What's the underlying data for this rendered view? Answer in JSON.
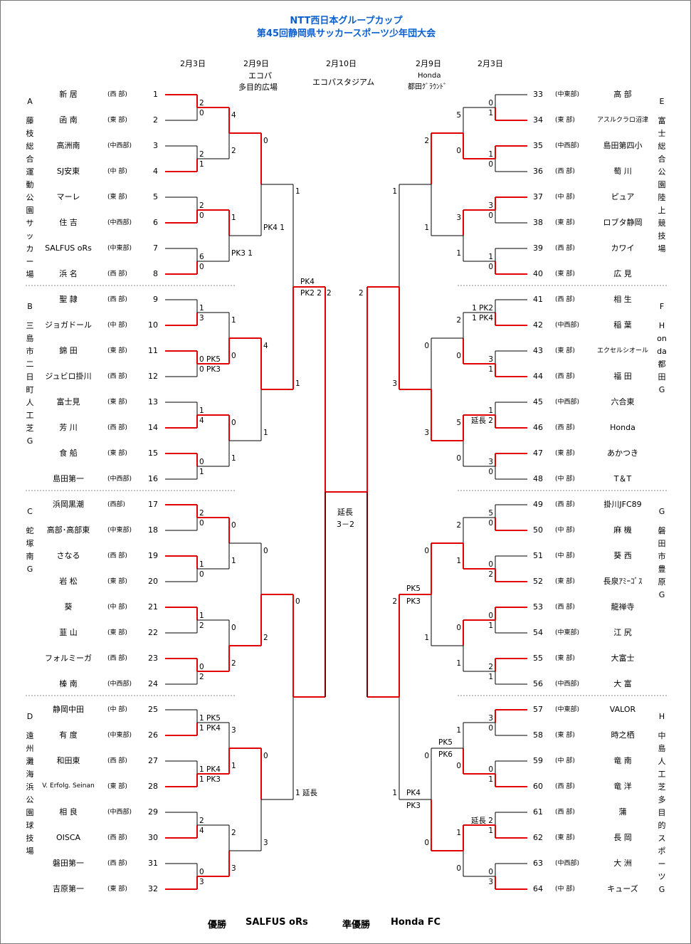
{
  "title": {
    "line1": "NTT西日本グループカップ",
    "line2": "第45回静岡県サッカースポーツ少年団大会"
  },
  "headers": {
    "l_r1": "2月3日",
    "l_r2_date": "2月9日",
    "l_r2_v1": "エコパ",
    "l_r2_v2": "多目的広場",
    "final_date": "2月10日",
    "final_venue": "エコパスタジアム",
    "r_r2_date": "2月9日",
    "r_r2_v1": "Honda",
    "r_r2_v2": "都田ｸﾞﾗｳﾝﾄﾞ",
    "r_r1": "2月3日"
  },
  "blocks": [
    {
      "letter": "A",
      "venue": "藤枝総合運動公園サッカー場"
    },
    {
      "letter": "B",
      "venue": "三島市二日町人工芝G"
    },
    {
      "letter": "C",
      "venue": "蛇塚南G"
    },
    {
      "letter": "D",
      "venue": "遠州灘海浜公園球技場"
    },
    {
      "letter": "E",
      "venue": "富士総合公園陸上競技場"
    },
    {
      "letter": "F",
      "venue": "Honda都田G"
    },
    {
      "letter": "G",
      "venue": "磐田市豊原G"
    },
    {
      "letter": "H",
      "venue": "中島人工芝多目的スポーツG"
    }
  ],
  "teams": [
    {
      "no": "1",
      "name": "新 居",
      "region": "(西 部)"
    },
    {
      "no": "2",
      "name": "函 南",
      "region": "(東 部)"
    },
    {
      "no": "3",
      "name": "高洲南",
      "region": "(中西部)"
    },
    {
      "no": "4",
      "name": "SJ安東",
      "region": "(中 部)"
    },
    {
      "no": "5",
      "name": "マーレ",
      "region": "(東 部)"
    },
    {
      "no": "6",
      "name": "住 吉",
      "region": "(中西部)"
    },
    {
      "no": "7",
      "name": "SALFUS oRs",
      "region": "(中東部)"
    },
    {
      "no": "8",
      "name": "浜 名",
      "region": "(西 部)"
    },
    {
      "no": "9",
      "name": "聖 隷",
      "region": "(西 部)"
    },
    {
      "no": "10",
      "name": "ジョガドール",
      "region": "(中 部)"
    },
    {
      "no": "11",
      "name": "錦 田",
      "region": "(東 部)"
    },
    {
      "no": "12",
      "name": "ジュビロ掛川",
      "region": "(西 部)"
    },
    {
      "no": "13",
      "name": "富士見",
      "region": "(東 部)"
    },
    {
      "no": "14",
      "name": "芳 川",
      "region": "(西 部)"
    },
    {
      "no": "15",
      "name": "食 船",
      "region": "(東 部)"
    },
    {
      "no": "16",
      "name": "島田第一",
      "region": "(中西部)"
    },
    {
      "no": "17",
      "name": "浜岡黒潮",
      "region": "(西部)"
    },
    {
      "no": "18",
      "name": "高部･高部東",
      "region": "(中東部)"
    },
    {
      "no": "19",
      "name": "さなる",
      "region": "(西 部)"
    },
    {
      "no": "20",
      "name": "岩 松",
      "region": "(東 部)"
    },
    {
      "no": "21",
      "name": "葵",
      "region": "(中 部)"
    },
    {
      "no": "22",
      "name": "韮 山",
      "region": "(東 部)"
    },
    {
      "no": "23",
      "name": "フォルミーガ",
      "region": "(西 部)"
    },
    {
      "no": "24",
      "name": "榛 南",
      "region": "(中西部)"
    },
    {
      "no": "25",
      "name": "静岡中田",
      "region": "(中 部)"
    },
    {
      "no": "26",
      "name": "有 度",
      "region": "(中東部)"
    },
    {
      "no": "27",
      "name": "和田東",
      "region": "(西 部)"
    },
    {
      "no": "28",
      "name": "V. Erfolg. Seinan",
      "region": "(東 部)"
    },
    {
      "no": "29",
      "name": "相 良",
      "region": "(中西部)"
    },
    {
      "no": "30",
      "name": "OISCA",
      "region": "(西 部)"
    },
    {
      "no": "31",
      "name": "磐田第一",
      "region": "(西 部)"
    },
    {
      "no": "32",
      "name": "吉原第一",
      "region": "(東 部)"
    },
    {
      "no": "33",
      "name": "高 部",
      "region": "(中東部)"
    },
    {
      "no": "34",
      "name": "アスルクラロ沼津",
      "region": "(東 部)"
    },
    {
      "no": "35",
      "name": "島田第四小",
      "region": "(中西部)"
    },
    {
      "no": "36",
      "name": "萄 川",
      "region": "(西 部)"
    },
    {
      "no": "37",
      "name": "ピュア",
      "region": "(中 部)"
    },
    {
      "no": "38",
      "name": "ロブタ静岡",
      "region": "(東 部)"
    },
    {
      "no": "39",
      "name": "カワイ",
      "region": "(西 部)"
    },
    {
      "no": "40",
      "name": "広 見",
      "region": "(東 部)"
    },
    {
      "no": "41",
      "name": "相 生",
      "region": "(西 部)"
    },
    {
      "no": "42",
      "name": "稲 葉",
      "region": "(中西部)"
    },
    {
      "no": "43",
      "name": "エクセルシオール",
      "region": "(東 部)"
    },
    {
      "no": "44",
      "name": "福 田",
      "region": "(西 部)"
    },
    {
      "no": "45",
      "name": "六合東",
      "region": "(中西部)"
    },
    {
      "no": "46",
      "name": "Honda",
      "region": "(西 部)"
    },
    {
      "no": "47",
      "name": "あかつき",
      "region": "(東 部)"
    },
    {
      "no": "48",
      "name": "T＆T",
      "region": "(中 部)"
    },
    {
      "no": "49",
      "name": "掛川JFC89",
      "region": "(西 部)"
    },
    {
      "no": "50",
      "name": "麻 機",
      "region": "(中 部)"
    },
    {
      "no": "51",
      "name": "葵 西",
      "region": "(中 部)"
    },
    {
      "no": "52",
      "name": "長泉ｱﾐｰｺﾞｽ",
      "region": "(東 部)"
    },
    {
      "no": "53",
      "name": "龍禅寺",
      "region": "(西 部)"
    },
    {
      "no": "54",
      "name": "江 尻",
      "region": "(中東部)"
    },
    {
      "no": "55",
      "name": "大富士",
      "region": "(東 部)"
    },
    {
      "no": "56",
      "name": "大 富",
      "region": "(中西部)"
    },
    {
      "no": "57",
      "name": "VALOR",
      "region": "(中東部)"
    },
    {
      "no": "58",
      "name": "時之栖",
      "region": "(東 部)"
    },
    {
      "no": "59",
      "name": "竜 南",
      "region": "(中 部)"
    },
    {
      "no": "60",
      "name": "竜 洋",
      "region": "(西 部)"
    },
    {
      "no": "61",
      "name": "蒲",
      "region": "(西 部)"
    },
    {
      "no": "62",
      "name": "長 岡",
      "region": "(東 部)"
    },
    {
      "no": "63",
      "name": "大 洲",
      "region": "(中西部)"
    },
    {
      "no": "64",
      "name": "キューズ",
      "region": "(中 部)"
    }
  ],
  "scores": {
    "m1": [
      "2",
      "0"
    ],
    "m2": [
      "2",
      "1"
    ],
    "m3": [
      "2",
      "0"
    ],
    "m4": [
      "6",
      "0"
    ],
    "m5": [
      "1",
      "3"
    ],
    "m6": [
      "0 PK5",
      "0 PK3"
    ],
    "m7": [
      "1",
      "4"
    ],
    "m8": [
      "0",
      "1"
    ],
    "m9": [
      "2",
      "0"
    ],
    "m10": [
      "1",
      "0"
    ],
    "m11": [
      "1",
      "2"
    ],
    "m12": [
      "0",
      "2"
    ],
    "m13": [
      "1 PK5",
      "1 PK4"
    ],
    "m14": [
      "1 PK4",
      "1 PK3"
    ],
    "m15": [
      "2",
      "4"
    ],
    "m16": [
      "0",
      "3"
    ],
    "m17": [
      "0",
      "1"
    ],
    "m18": [
      "1",
      "0"
    ],
    "m19": [
      "3",
      "0"
    ],
    "m20": [
      "1",
      "0"
    ],
    "m21": [
      "1 PK2",
      "1 PK4"
    ],
    "m22": [
      "3",
      "1"
    ],
    "m23": [
      "1",
      "延長 2"
    ],
    "m24": [
      "3",
      "0"
    ],
    "m25": [
      "5",
      "0"
    ],
    "m26": [
      "0",
      "2"
    ],
    "m27": [
      "0",
      "1"
    ],
    "m28": [
      "2",
      "1"
    ],
    "m29": [
      "3",
      "0"
    ],
    "m30": [
      "0",
      "1"
    ],
    "m31": [
      "延長 2",
      "1"
    ],
    "m32": [
      "0",
      "3"
    ],
    "q1": [
      "4",
      "2"
    ],
    "q2": [
      "1",
      "PK3 1"
    ],
    "q3": [
      "1",
      "0"
    ],
    "q4": [
      "0",
      "1"
    ],
    "q5": [
      "0",
      "1"
    ],
    "q6": [
      "0",
      "2"
    ],
    "q7": [
      "3",
      "1"
    ],
    "q8": [
      "2",
      "3"
    ],
    "q9": [
      "5",
      "0"
    ],
    "q10": [
      "3",
      "1"
    ],
    "q11": [
      "2",
      "0"
    ],
    "q12": [
      "5",
      "0"
    ],
    "q13": [
      "2",
      "1"
    ],
    "q14": [
      "0",
      "1"
    ],
    "q15": [
      "1",
      "0"
    ],
    "q16": [
      "1",
      "0"
    ],
    "s1": [
      "0",
      "PK4 1"
    ],
    "s2": [
      "4",
      "1"
    ],
    "s3": [
      "0",
      "2"
    ],
    "s4": [
      "0",
      "3"
    ],
    "s5": [
      "2",
      "1"
    ],
    "s6": [
      "0",
      "3"
    ],
    "s7": [
      "0",
      "1"
    ],
    "s8": [
      "0",
      "0"
    ],
    "t1": [
      "1",
      "PK4"
    ],
    "t2": [
      "PK2 2",
      "1"
    ],
    "t3": [
      "0",
      "1 延長"
    ],
    "t4": [
      "1",
      "3"
    ],
    "t5": [
      "2",
      "1"
    ],
    "t6": [
      "PK5",
      "PK3"
    ],
    "t7": [
      "PK5",
      "PK6"
    ],
    "t8": [
      "PK4",
      "PK3"
    ],
    "f": [
      "2",
      "2"
    ]
  },
  "final": {
    "note1": "延長",
    "note2": "3－2"
  },
  "result": {
    "winner_label": "優勝",
    "winner": "SALFUS oRs",
    "runner_label": "準優勝",
    "runner": "Honda FC"
  }
}
